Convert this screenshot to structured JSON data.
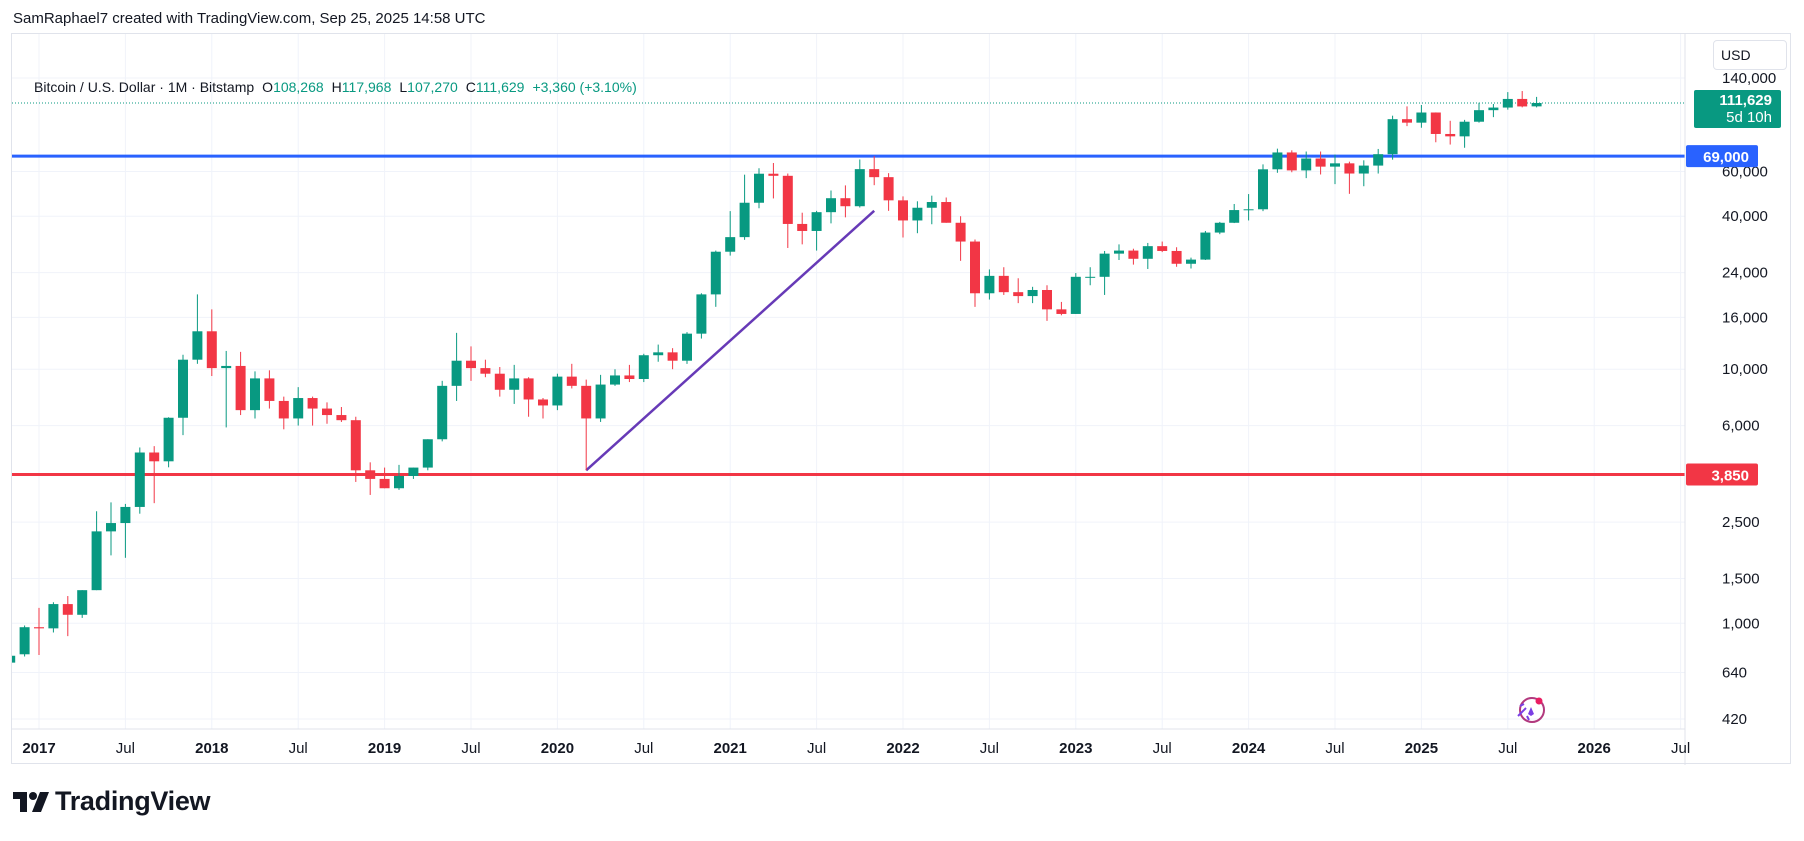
{
  "header": {
    "caption": "SamRaphael7 created with TradingView.com, Sep 25, 2025 14:58 UTC"
  },
  "legend": {
    "symbol": "Bitcoin / U.S. Dollar · 1M · Bitstamp",
    "o_label": "O",
    "o_value": "108,268",
    "h_label": "H",
    "h_value": "117,968",
    "l_label": "L",
    "l_value": "107,270",
    "c_label": "C",
    "c_value": "111,629",
    "change": "+3,360 (+3.10%)"
  },
  "currency_button": "USD",
  "last_price": {
    "value": "111,629",
    "countdown": "5d 10h",
    "color": "#089981"
  },
  "brand": "TradingView",
  "chart_data": {
    "type": "candlestick",
    "scale": "log",
    "ylim": [
      420,
      140000
    ],
    "y_ticks": [
      140000,
      60000,
      40000,
      24000,
      16000,
      10000,
      6000,
      2500,
      1500,
      1000,
      640,
      420
    ],
    "y_tick_labels": [
      "140,000",
      "60,000",
      "40,000",
      "24,000",
      "16,000",
      "10,000",
      "6,000",
      "2,500",
      "1,500",
      "1,000",
      "640",
      "420"
    ],
    "x_ticks": [
      {
        "label": "2017",
        "x": "2017-01",
        "bold": true
      },
      {
        "label": "Jul",
        "x": "2017-07",
        "bold": false
      },
      {
        "label": "2018",
        "x": "2018-01",
        "bold": true
      },
      {
        "label": "Jul",
        "x": "2018-07",
        "bold": false
      },
      {
        "label": "2019",
        "x": "2019-01",
        "bold": true
      },
      {
        "label": "Jul",
        "x": "2019-07",
        "bold": false
      },
      {
        "label": "2020",
        "x": "2020-01",
        "bold": true
      },
      {
        "label": "Jul",
        "x": "2020-07",
        "bold": false
      },
      {
        "label": "2021",
        "x": "2021-01",
        "bold": true
      },
      {
        "label": "Jul",
        "x": "2021-07",
        "bold": false
      },
      {
        "label": "2022",
        "x": "2022-01",
        "bold": true
      },
      {
        "label": "Jul",
        "x": "2022-07",
        "bold": false
      },
      {
        "label": "2023",
        "x": "2023-01",
        "bold": true
      },
      {
        "label": "Jul",
        "x": "2023-07",
        "bold": false
      },
      {
        "label": "2024",
        "x": "2024-01",
        "bold": true
      },
      {
        "label": "Jul",
        "x": "2024-07",
        "bold": false
      },
      {
        "label": "2025",
        "x": "2025-01",
        "bold": true
      },
      {
        "label": "Jul",
        "x": "2025-07",
        "bold": false
      },
      {
        "label": "2026",
        "x": "2026-01",
        "bold": true
      },
      {
        "label": "Jul",
        "x": "2026-07",
        "bold": false
      }
    ],
    "up_color": "#089981",
    "down_color": "#f23645",
    "start_month": "2016-11",
    "candles": [
      {
        "o": 700,
        "h": 750,
        "l": 690,
        "c": 745
      },
      {
        "o": 755,
        "h": 980,
        "l": 740,
        "c": 965
      },
      {
        "o": 965,
        "h": 1150,
        "l": 750,
        "c": 955
      },
      {
        "o": 955,
        "h": 1210,
        "l": 920,
        "c": 1190
      },
      {
        "o": 1190,
        "h": 1280,
        "l": 890,
        "c": 1080
      },
      {
        "o": 1080,
        "h": 1350,
        "l": 1050,
        "c": 1350
      },
      {
        "o": 1350,
        "h": 2760,
        "l": 1350,
        "c": 2300
      },
      {
        "o": 2300,
        "h": 2990,
        "l": 1850,
        "c": 2480
      },
      {
        "o": 2480,
        "h": 2950,
        "l": 1810,
        "c": 2870
      },
      {
        "o": 2870,
        "h": 4920,
        "l": 2700,
        "c": 4700
      },
      {
        "o": 4700,
        "h": 4980,
        "l": 2970,
        "c": 4340
      },
      {
        "o": 4340,
        "h": 6470,
        "l": 4110,
        "c": 6440
      },
      {
        "o": 6440,
        "h": 11400,
        "l": 5500,
        "c": 10900
      },
      {
        "o": 10900,
        "h": 19700,
        "l": 10500,
        "c": 14100
      },
      {
        "o": 14100,
        "h": 17200,
        "l": 9400,
        "c": 10100
      },
      {
        "o": 10100,
        "h": 11800,
        "l": 5900,
        "c": 10300
      },
      {
        "o": 10300,
        "h": 11700,
        "l": 6600,
        "c": 6900
      },
      {
        "o": 6900,
        "h": 9800,
        "l": 6400,
        "c": 9200
      },
      {
        "o": 9200,
        "h": 9900,
        "l": 7000,
        "c": 7500
      },
      {
        "o": 7500,
        "h": 7800,
        "l": 5800,
        "c": 6400
      },
      {
        "o": 6400,
        "h": 8500,
        "l": 6000,
        "c": 7700
      },
      {
        "o": 7700,
        "h": 7800,
        "l": 6000,
        "c": 7000
      },
      {
        "o": 7000,
        "h": 7400,
        "l": 6100,
        "c": 6600
      },
      {
        "o": 6600,
        "h": 7100,
        "l": 6200,
        "c": 6300
      },
      {
        "o": 6300,
        "h": 6500,
        "l": 3600,
        "c": 4000
      },
      {
        "o": 4000,
        "h": 4300,
        "l": 3200,
        "c": 3700
      },
      {
        "o": 3700,
        "h": 4100,
        "l": 3400,
        "c": 3400
      },
      {
        "o": 3400,
        "h": 4200,
        "l": 3350,
        "c": 3800
      },
      {
        "o": 3800,
        "h": 4100,
        "l": 3700,
        "c": 4100
      },
      {
        "o": 4100,
        "h": 5300,
        "l": 4000,
        "c": 5300
      },
      {
        "o": 5300,
        "h": 9000,
        "l": 5200,
        "c": 8600
      },
      {
        "o": 8600,
        "h": 13900,
        "l": 7500,
        "c": 10800
      },
      {
        "o": 10800,
        "h": 12300,
        "l": 9000,
        "c": 10100
      },
      {
        "o": 10100,
        "h": 10900,
        "l": 9300,
        "c": 9600
      },
      {
        "o": 9600,
        "h": 10200,
        "l": 7800,
        "c": 8300
      },
      {
        "o": 8300,
        "h": 10400,
        "l": 7300,
        "c": 9200
      },
      {
        "o": 9200,
        "h": 9300,
        "l": 6500,
        "c": 7600
      },
      {
        "o": 7600,
        "h": 7700,
        "l": 6400,
        "c": 7200
      },
      {
        "o": 7200,
        "h": 9600,
        "l": 6900,
        "c": 9350
      },
      {
        "o": 9350,
        "h": 10500,
        "l": 8400,
        "c": 8600
      },
      {
        "o": 8600,
        "h": 9100,
        "l": 4000,
        "c": 6400
      },
      {
        "o": 6400,
        "h": 9500,
        "l": 6200,
        "c": 8700
      },
      {
        "o": 8700,
        "h": 10000,
        "l": 8600,
        "c": 9450
      },
      {
        "o": 9450,
        "h": 10400,
        "l": 8900,
        "c": 9150
      },
      {
        "o": 9150,
        "h": 11500,
        "l": 8900,
        "c": 11350
      },
      {
        "o": 11350,
        "h": 12500,
        "l": 10700,
        "c": 11650
      },
      {
        "o": 11650,
        "h": 12100,
        "l": 10000,
        "c": 10800
      },
      {
        "o": 10800,
        "h": 14000,
        "l": 10500,
        "c": 13800
      },
      {
        "o": 13800,
        "h": 19900,
        "l": 13200,
        "c": 19700
      },
      {
        "o": 19700,
        "h": 29300,
        "l": 17600,
        "c": 29000
      },
      {
        "o": 29000,
        "h": 41900,
        "l": 28000,
        "c": 33100
      },
      {
        "o": 33100,
        "h": 58300,
        "l": 32300,
        "c": 45200
      },
      {
        "o": 45200,
        "h": 61800,
        "l": 43000,
        "c": 58800
      },
      {
        "o": 58800,
        "h": 64800,
        "l": 47000,
        "c": 57700
      },
      {
        "o": 57700,
        "h": 58900,
        "l": 30000,
        "c": 37300
      },
      {
        "o": 37300,
        "h": 41300,
        "l": 31000,
        "c": 35000
      },
      {
        "o": 35000,
        "h": 42000,
        "l": 29300,
        "c": 41500
      },
      {
        "o": 41500,
        "h": 50500,
        "l": 37500,
        "c": 47100
      },
      {
        "o": 47100,
        "h": 52900,
        "l": 39600,
        "c": 43800
      },
      {
        "o": 43800,
        "h": 66900,
        "l": 43300,
        "c": 61300
      },
      {
        "o": 61300,
        "h": 69000,
        "l": 53000,
        "c": 57000
      },
      {
        "o": 57000,
        "h": 59100,
        "l": 42000,
        "c": 46200
      },
      {
        "o": 46200,
        "h": 47900,
        "l": 33000,
        "c": 38500
      },
      {
        "o": 38500,
        "h": 45800,
        "l": 34300,
        "c": 43200
      },
      {
        "o": 43200,
        "h": 48200,
        "l": 37200,
        "c": 45500
      },
      {
        "o": 45500,
        "h": 47400,
        "l": 37700,
        "c": 37700
      },
      {
        "o": 37700,
        "h": 40000,
        "l": 26700,
        "c": 31800
      },
      {
        "o": 31800,
        "h": 32400,
        "l": 17600,
        "c": 19900
      },
      {
        "o": 19900,
        "h": 24700,
        "l": 18800,
        "c": 23300
      },
      {
        "o": 23300,
        "h": 25200,
        "l": 19600,
        "c": 20100
      },
      {
        "o": 20100,
        "h": 22800,
        "l": 18200,
        "c": 19400
      },
      {
        "o": 19400,
        "h": 21100,
        "l": 18200,
        "c": 20500
      },
      {
        "o": 20500,
        "h": 21400,
        "l": 15500,
        "c": 17200
      },
      {
        "o": 17200,
        "h": 18400,
        "l": 16300,
        "c": 16500
      },
      {
        "o": 16500,
        "h": 23900,
        "l": 16500,
        "c": 23100
      },
      {
        "o": 23100,
        "h": 25200,
        "l": 21400,
        "c": 23100
      },
      {
        "o": 23100,
        "h": 29200,
        "l": 19600,
        "c": 28500
      },
      {
        "o": 28500,
        "h": 31000,
        "l": 26900,
        "c": 29300
      },
      {
        "o": 29300,
        "h": 29800,
        "l": 25800,
        "c": 27200
      },
      {
        "o": 27200,
        "h": 31400,
        "l": 24800,
        "c": 30500
      },
      {
        "o": 30500,
        "h": 31800,
        "l": 28900,
        "c": 29200
      },
      {
        "o": 29200,
        "h": 30200,
        "l": 25300,
        "c": 26000
      },
      {
        "o": 26000,
        "h": 27500,
        "l": 24900,
        "c": 27000
      },
      {
        "o": 27000,
        "h": 35000,
        "l": 26900,
        "c": 34500
      },
      {
        "o": 34500,
        "h": 38000,
        "l": 34000,
        "c": 37700
      },
      {
        "o": 37700,
        "h": 44700,
        "l": 37600,
        "c": 42300
      },
      {
        "o": 42300,
        "h": 48900,
        "l": 38500,
        "c": 42600
      },
      {
        "o": 42600,
        "h": 64000,
        "l": 41900,
        "c": 61200
      },
      {
        "o": 61200,
        "h": 73800,
        "l": 59300,
        "c": 71300
      },
      {
        "o": 71300,
        "h": 72700,
        "l": 59600,
        "c": 60600
      },
      {
        "o": 60600,
        "h": 71900,
        "l": 56500,
        "c": 67500
      },
      {
        "o": 67500,
        "h": 71900,
        "l": 58400,
        "c": 62700
      },
      {
        "o": 62700,
        "h": 70000,
        "l": 53500,
        "c": 64600
      },
      {
        "o": 64600,
        "h": 65600,
        "l": 49000,
        "c": 58900
      },
      {
        "o": 58900,
        "h": 66400,
        "l": 52500,
        "c": 63300
      },
      {
        "o": 63300,
        "h": 73600,
        "l": 58900,
        "c": 70200
      },
      {
        "o": 70200,
        "h": 99500,
        "l": 66800,
        "c": 96400
      },
      {
        "o": 96400,
        "h": 108300,
        "l": 90500,
        "c": 93400
      },
      {
        "o": 93400,
        "h": 109600,
        "l": 89200,
        "c": 102400
      },
      {
        "o": 102400,
        "h": 102500,
        "l": 78200,
        "c": 84300
      },
      {
        "o": 84300,
        "h": 95000,
        "l": 76600,
        "c": 82500
      },
      {
        "o": 82500,
        "h": 95800,
        "l": 74400,
        "c": 94200
      },
      {
        "o": 94200,
        "h": 111900,
        "l": 93400,
        "c": 104600
      },
      {
        "o": 104600,
        "h": 110600,
        "l": 98200,
        "c": 107100
      },
      {
        "o": 107100,
        "h": 123200,
        "l": 105100,
        "c": 115800
      },
      {
        "o": 115800,
        "h": 124400,
        "l": 107300,
        "c": 108200
      },
      {
        "o": 108268,
        "h": 117968,
        "l": 107270,
        "c": 111629
      }
    ],
    "horizontal_lines": [
      {
        "price": 69000,
        "label": "69,000",
        "color": "#2962ff"
      },
      {
        "price": 3850,
        "label": "3,850",
        "color": "#f23645"
      }
    ],
    "trend_line": {
      "from": {
        "x": "2020-03",
        "y": 4000
      },
      "to": {
        "x": "2021-11",
        "y": 42000
      },
      "color": "#673ab7"
    }
  }
}
